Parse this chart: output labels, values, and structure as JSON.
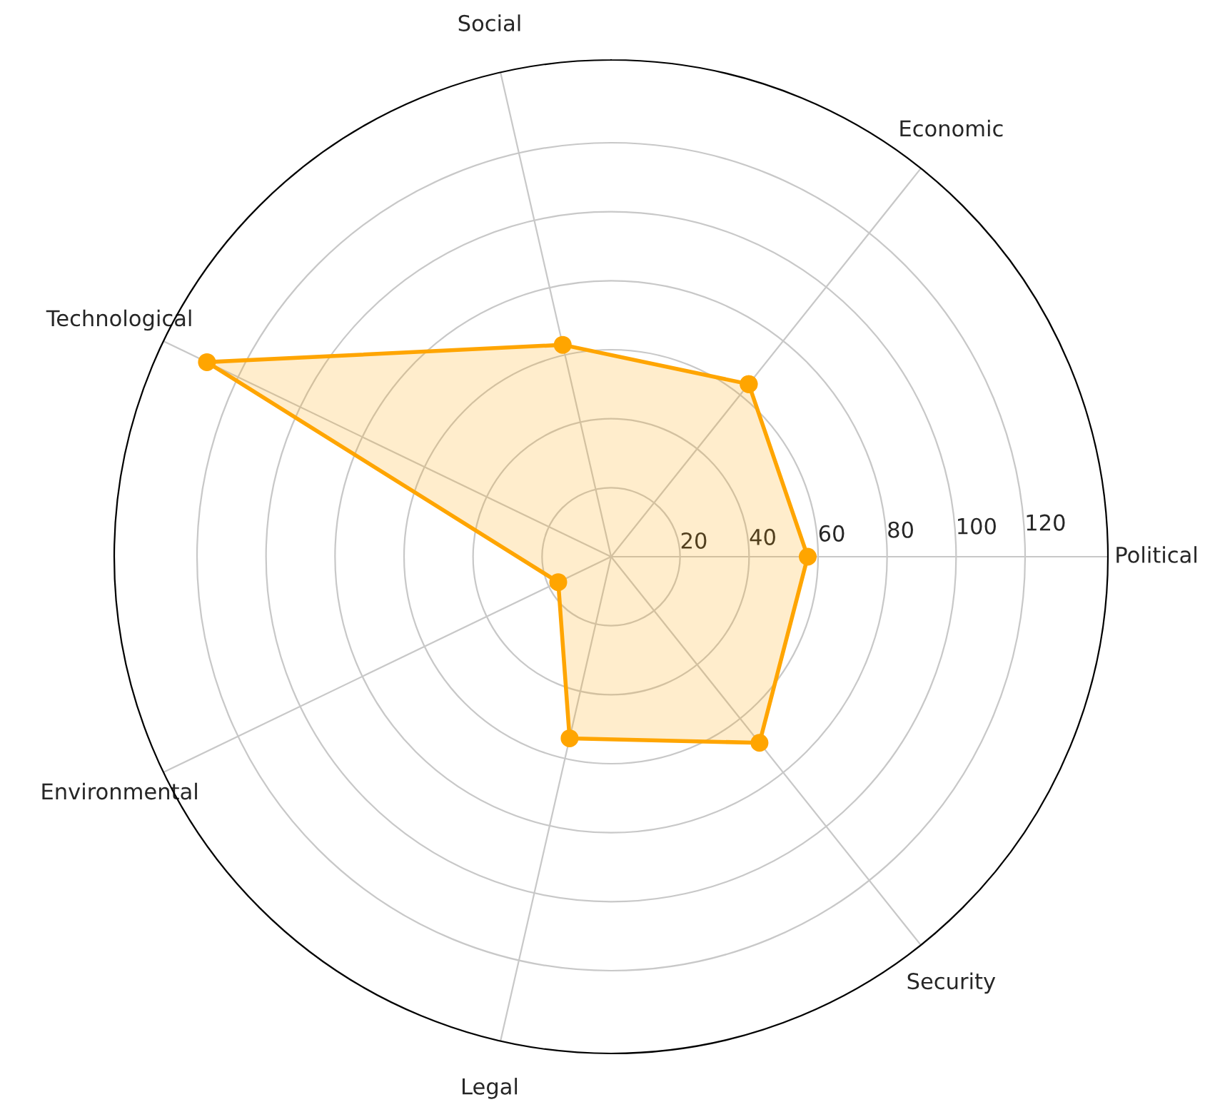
{
  "chart_data": {
    "type": "radar",
    "categories": [
      "Economic",
      "Political",
      "Security",
      "Legal",
      "Environmental",
      "Technological",
      "Social"
    ],
    "series": [
      {
        "color": "#ffa500",
        "values": [
          64,
          57,
          69,
          54,
          17,
          130,
          63
        ]
      }
    ],
    "ylim": [
      0,
      144
    ],
    "yticks": [
      20,
      40,
      60,
      80,
      100,
      120
    ],
    "grid": true,
    "marker": "circle",
    "line_style": "solid"
  }
}
